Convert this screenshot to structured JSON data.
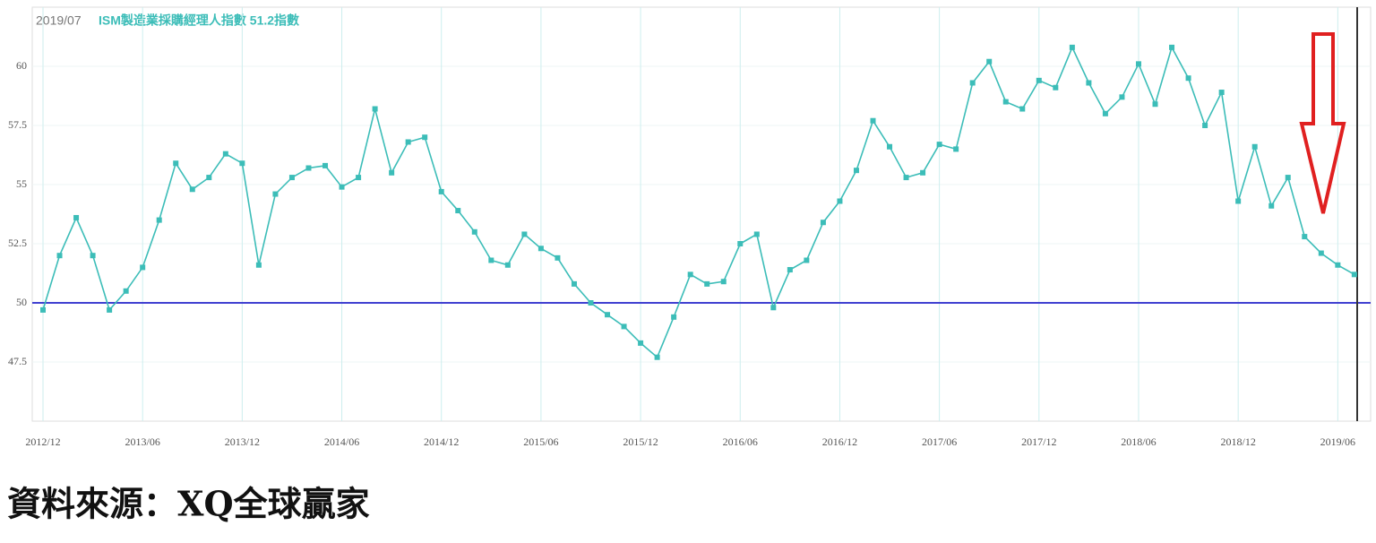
{
  "chart_data": {
    "type": "line",
    "date_label": "2019/07",
    "title": "ISM製造業採購經理人指數 51.2指數",
    "source": "資料來源：XQ全球贏家",
    "categories": [
      "2012/12",
      null,
      null,
      null,
      null,
      null,
      "2013/06",
      null,
      null,
      null,
      null,
      null,
      "2013/12",
      null,
      null,
      null,
      null,
      null,
      "2014/06",
      null,
      null,
      null,
      null,
      null,
      "2014/12",
      null,
      null,
      null,
      null,
      null,
      "2015/06",
      null,
      null,
      null,
      null,
      null,
      "2015/12",
      null,
      null,
      null,
      null,
      null,
      "2016/06",
      null,
      null,
      null,
      null,
      null,
      "2016/12",
      null,
      null,
      null,
      null,
      null,
      "2017/06",
      null,
      null,
      null,
      null,
      null,
      "2017/12",
      null,
      null,
      null,
      null,
      null,
      "2018/06",
      null,
      null,
      null,
      null,
      null,
      "2018/12",
      null,
      null,
      null,
      null,
      null,
      "2019/06",
      null
    ],
    "series": [
      {
        "name": "ISM",
        "color": "#3cbdb8",
        "values": [
          49.7,
          52.0,
          53.6,
          52.0,
          49.7,
          50.5,
          51.5,
          53.5,
          55.9,
          54.8,
          55.3,
          56.3,
          55.9,
          51.6,
          54.6,
          55.3,
          55.7,
          55.8,
          54.9,
          55.3,
          58.2,
          55.5,
          56.8,
          57.0,
          54.7,
          53.9,
          53.0,
          51.8,
          51.6,
          52.9,
          52.3,
          51.9,
          50.8,
          50.0,
          49.5,
          49.0,
          48.3,
          47.7,
          49.4,
          51.2,
          50.8,
          50.9,
          52.5,
          52.9,
          49.8,
          51.4,
          51.8,
          53.4,
          54.3,
          55.6,
          57.7,
          56.6,
          55.3,
          55.5,
          56.7,
          56.5,
          59.3,
          60.2,
          58.5,
          58.2,
          59.4,
          59.1,
          60.8,
          59.3,
          58.0,
          58.7,
          60.1,
          58.4,
          60.8,
          59.5,
          57.5,
          58.9,
          54.3,
          56.6,
          54.1,
          55.3,
          52.8,
          52.1,
          51.6,
          51.2
        ]
      }
    ],
    "reference_line": {
      "value": 50,
      "color": "#4040d0"
    },
    "ylim": [
      45,
      62.5
    ],
    "yticks": [
      47.5,
      50,
      52.5,
      55,
      57.5,
      60
    ],
    "grid": true
  }
}
